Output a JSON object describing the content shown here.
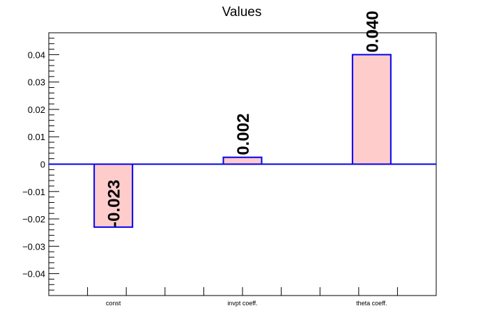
{
  "chart_data": {
    "type": "bar",
    "title": "Values",
    "categories": [
      "const",
      "invpt coeff.",
      "theta coeff."
    ],
    "values": [
      -0.023,
      0.0025,
      0.04
    ],
    "data_labels": [
      "-0.023",
      "0.002",
      "0.040"
    ],
    "ylim": [
      -0.048,
      0.048
    ],
    "yticks": [
      -0.04,
      -0.03,
      -0.02,
      -0.01,
      0,
      0.01,
      0.02,
      0.03,
      0.04
    ],
    "ytick_labels": [
      "−0.04",
      "−0.03",
      "−0.02",
      "−0.01",
      "0",
      "0.01",
      "0.02",
      "0.03",
      "0.04"
    ],
    "xlabel": "",
    "ylabel": "",
    "grid": false,
    "colors": {
      "bar_fill": "#ffcccc",
      "bar_stroke": "#0000ee",
      "zero_line": "#0000ee",
      "axis": "#000000"
    }
  }
}
